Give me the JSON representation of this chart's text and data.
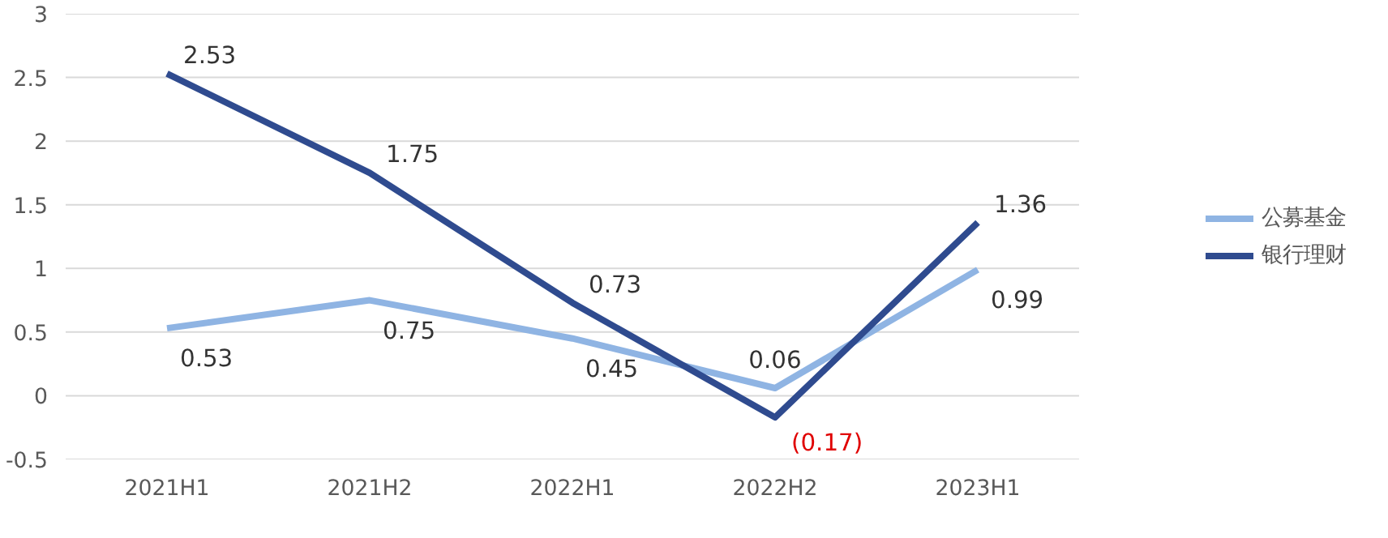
{
  "chart_data": {
    "type": "line",
    "categories": [
      "2021H1",
      "2021H2",
      "2022H1",
      "2022H2",
      "2023H1"
    ],
    "series": [
      {
        "name": "公募基金",
        "color": "#8fb4e3",
        "values": [
          0.53,
          0.75,
          0.45,
          0.06,
          0.99
        ],
        "value_labels": [
          "0.53",
          "0.75",
          "0.45",
          "0.06",
          "0.99"
        ]
      },
      {
        "name": "银行理财",
        "color": "#2f4b8f",
        "values": [
          2.53,
          1.75,
          0.73,
          -0.17,
          1.36
        ],
        "value_labels": [
          "2.53",
          "1.75",
          "0.73",
          "(0.17)",
          "1.36"
        ]
      }
    ],
    "ylim": [
      -0.5,
      3
    ],
    "yticks": [
      -0.5,
      0,
      0.5,
      1,
      1.5,
      2,
      2.5,
      3
    ],
    "grid": "y",
    "legend": "right",
    "marker": "none",
    "line_style": "solid"
  }
}
